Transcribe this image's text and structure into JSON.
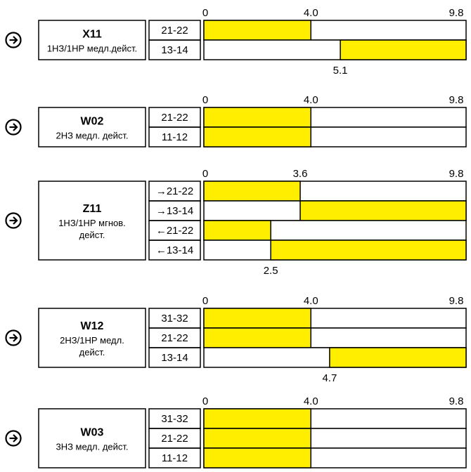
{
  "switches": [
    {
      "code": "X11",
      "desc_lines": [
        "1НЗ/1НР медл.дейст."
      ],
      "scale": {
        "start": "0",
        "mid": "4.0",
        "end": "9.8"
      },
      "max": 9.8,
      "contacts": [
        {
          "label": "21-22",
          "closed_from": 0,
          "closed_to": 4.0
        },
        {
          "label": "13-14",
          "closed_from": 5.1,
          "closed_to": 9.8
        }
      ],
      "bottom_note": "5.1",
      "bottom_note_value": 5.1
    },
    {
      "code": "W02",
      "desc_lines": [
        "2НЗ медл. дейст."
      ],
      "scale": {
        "start": "0",
        "mid": "4.0",
        "end": "9.8"
      },
      "max": 9.8,
      "contacts": [
        {
          "label": "21-22",
          "closed_from": 0,
          "closed_to": 4.0
        },
        {
          "label": "11-12",
          "closed_from": 0,
          "closed_to": 4.0
        }
      ]
    },
    {
      "code": "Z11",
      "desc_lines": [
        "1НЗ/1НР мгнов.",
        "дейст."
      ],
      "scale": {
        "start": "0",
        "mid": "3.6",
        "end": "9.8"
      },
      "max": 9.8,
      "contacts": [
        {
          "label": "→21-22",
          "closed_from": 0,
          "closed_to": 3.6
        },
        {
          "label": "→13-14",
          "closed_from": 3.6,
          "closed_to": 9.8
        },
        {
          "label": "←21-22",
          "closed_from": 0,
          "closed_to": 2.5
        },
        {
          "label": "←13-14",
          "closed_from": 2.5,
          "closed_to": 9.8
        }
      ],
      "bottom_note": "2.5",
      "bottom_note_value": 2.5
    },
    {
      "code": "W12",
      "desc_lines": [
        "2НЗ/1НР медл.",
        "дейст."
      ],
      "scale": {
        "start": "0",
        "mid": "4.0",
        "end": "9.8"
      },
      "max": 9.8,
      "contacts": [
        {
          "label": "31-32",
          "closed_from": 0,
          "closed_to": 4.0
        },
        {
          "label": "21-22",
          "closed_from": 0,
          "closed_to": 4.0
        },
        {
          "label": "13-14",
          "closed_from": 4.7,
          "closed_to": 9.8
        }
      ],
      "bottom_note": "4.7",
      "bottom_note_value": 4.7
    },
    {
      "code": "W03",
      "desc_lines": [
        "3НЗ медл. дейст."
      ],
      "scale": {
        "start": "0",
        "mid": "4.0",
        "end": "9.8"
      },
      "max": 9.8,
      "contacts": [
        {
          "label": "31-32",
          "closed_from": 0,
          "closed_to": 4.0
        },
        {
          "label": "21-22",
          "closed_from": 0,
          "closed_to": 4.0
        },
        {
          "label": "11-12",
          "closed_from": 0,
          "closed_to": 4.0
        }
      ]
    }
  ],
  "colors": {
    "closed_fill": "#FFEE00",
    "stroke": "#000000",
    "background": "#FFFFFF"
  },
  "icons": {
    "direction": "arrow-right-circle-icon"
  }
}
